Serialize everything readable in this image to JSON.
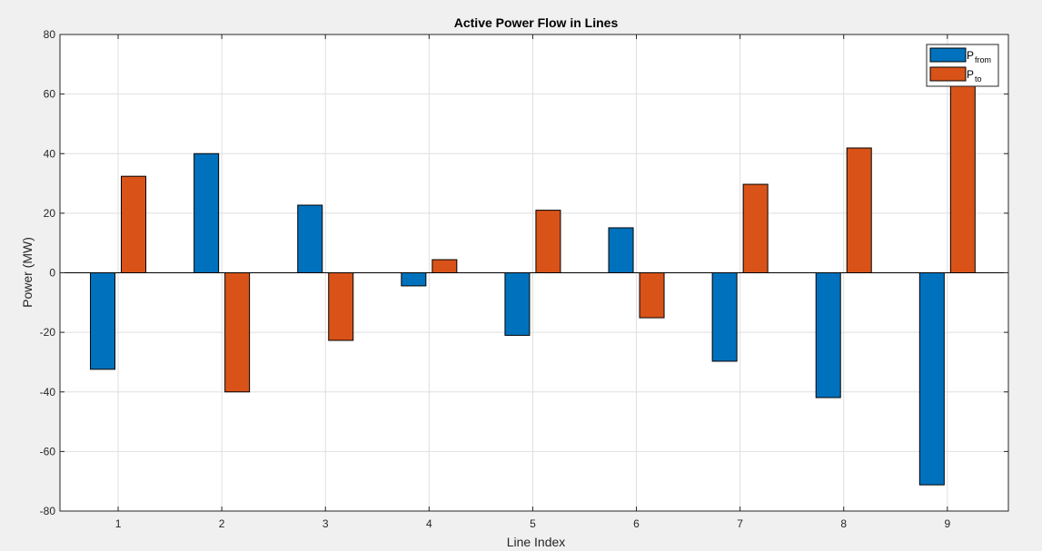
{
  "chart_data": {
    "type": "bar",
    "title": "Active Power Flow in Lines",
    "xlabel": "Line Index",
    "ylabel": "Power (MW)",
    "categories": [
      "1",
      "2",
      "3",
      "4",
      "5",
      "6",
      "7",
      "8",
      "9"
    ],
    "ylim": [
      -80,
      80
    ],
    "yticks": [
      "-80",
      "-60",
      "-40",
      "-20",
      "0",
      "20",
      "40",
      "60",
      "80"
    ],
    "grid": true,
    "legend_position": "top-right",
    "series": [
      {
        "name": "P",
        "subscript": "from",
        "color": "#0072bd",
        "values": [
          -32.4,
          40.0,
          22.7,
          -4.4,
          -21.0,
          15.1,
          -29.7,
          -41.9,
          -71.2
        ]
      },
      {
        "name": "P",
        "subscript": "to",
        "color": "#d95319",
        "values": [
          32.4,
          -40.0,
          -22.7,
          4.4,
          21.0,
          -15.1,
          29.7,
          41.9,
          71.2
        ]
      }
    ]
  }
}
